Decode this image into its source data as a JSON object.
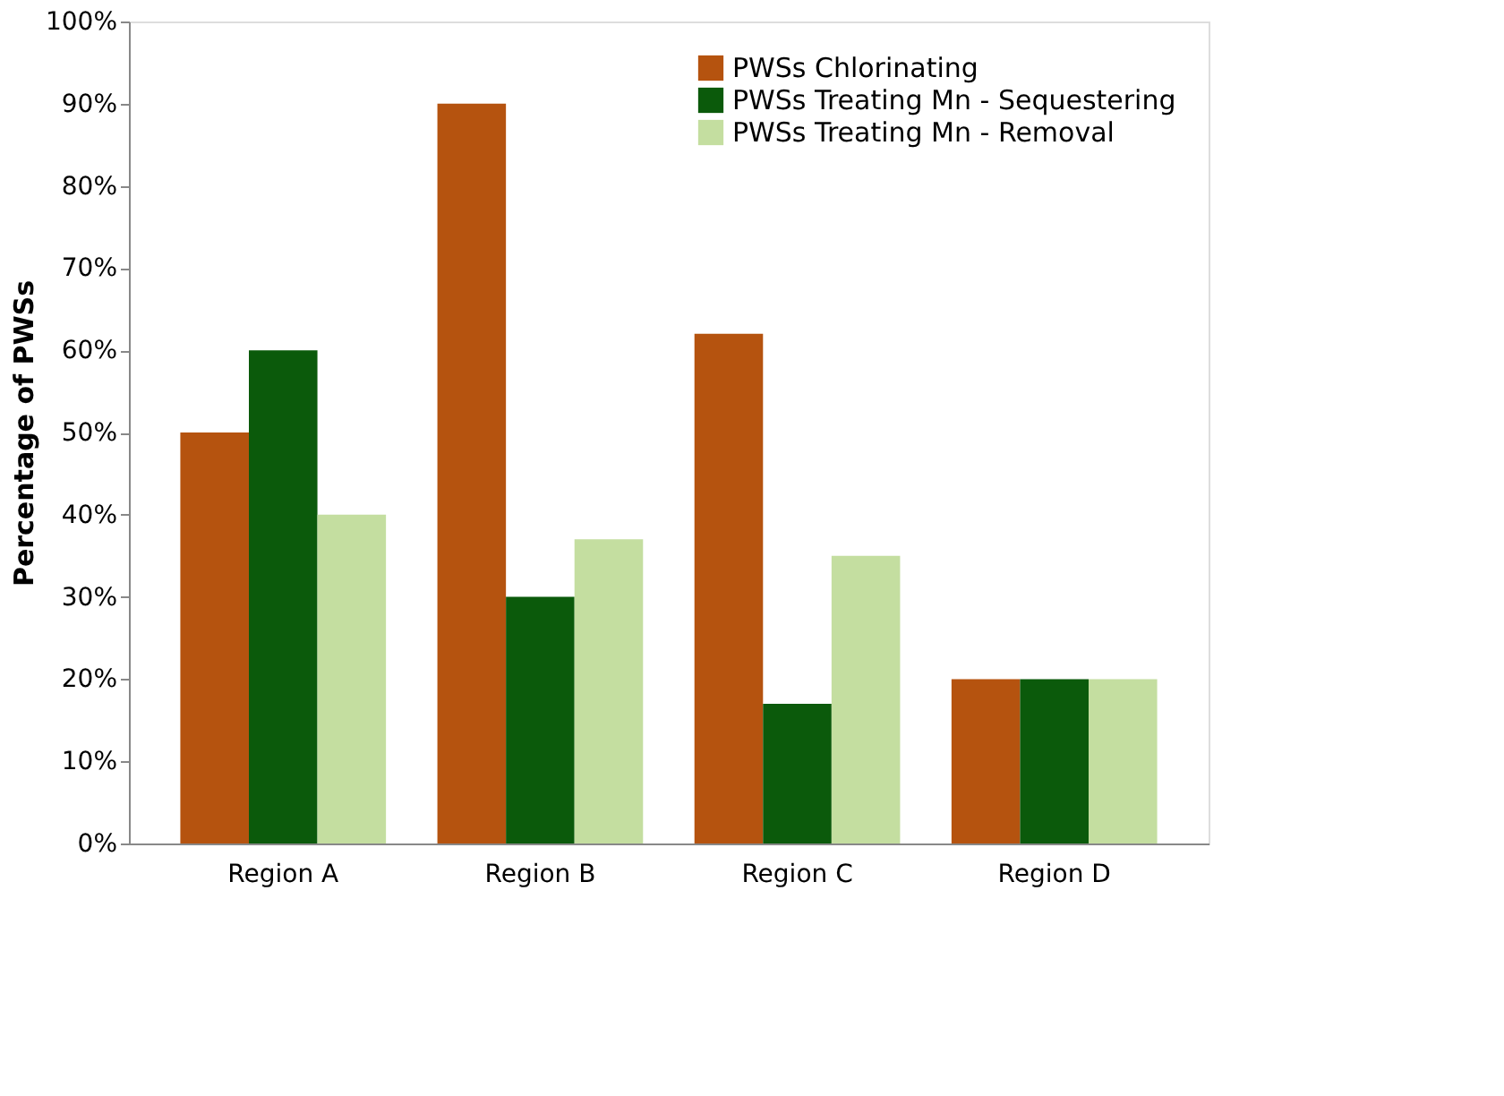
{
  "chart_data": {
    "type": "bar",
    "ylabel": "Percentage of PWSs",
    "categories": [
      "Region A",
      "Region B",
      "Region C",
      "Region D"
    ],
    "series": [
      {
        "name": "PWSs Chlorinating",
        "color": "#b5530f",
        "values": [
          50,
          90,
          62,
          20
        ]
      },
      {
        "name": "PWSs Treating Mn - Sequestering",
        "color": "#0b5a0b",
        "values": [
          60,
          30,
          17,
          20
        ]
      },
      {
        "name": "PWSs Treating Mn - Removal",
        "color": "#c4dea0",
        "values": [
          40,
          37,
          35,
          20
        ]
      }
    ],
    "ylim": [
      0,
      100
    ],
    "yticks": [
      {
        "value": 0,
        "label": "0%"
      },
      {
        "value": 10,
        "label": "10%"
      },
      {
        "value": 20,
        "label": "20%"
      },
      {
        "value": 30,
        "label": "30%"
      },
      {
        "value": 40,
        "label": "40%"
      },
      {
        "value": 50,
        "label": "50%"
      },
      {
        "value": 60,
        "label": "60%"
      },
      {
        "value": 70,
        "label": "70%"
      },
      {
        "value": 80,
        "label": "80%"
      },
      {
        "value": 90,
        "label": "90%"
      },
      {
        "value": 100,
        "label": "100%"
      }
    ],
    "grid": false,
    "legend": "top right"
  }
}
